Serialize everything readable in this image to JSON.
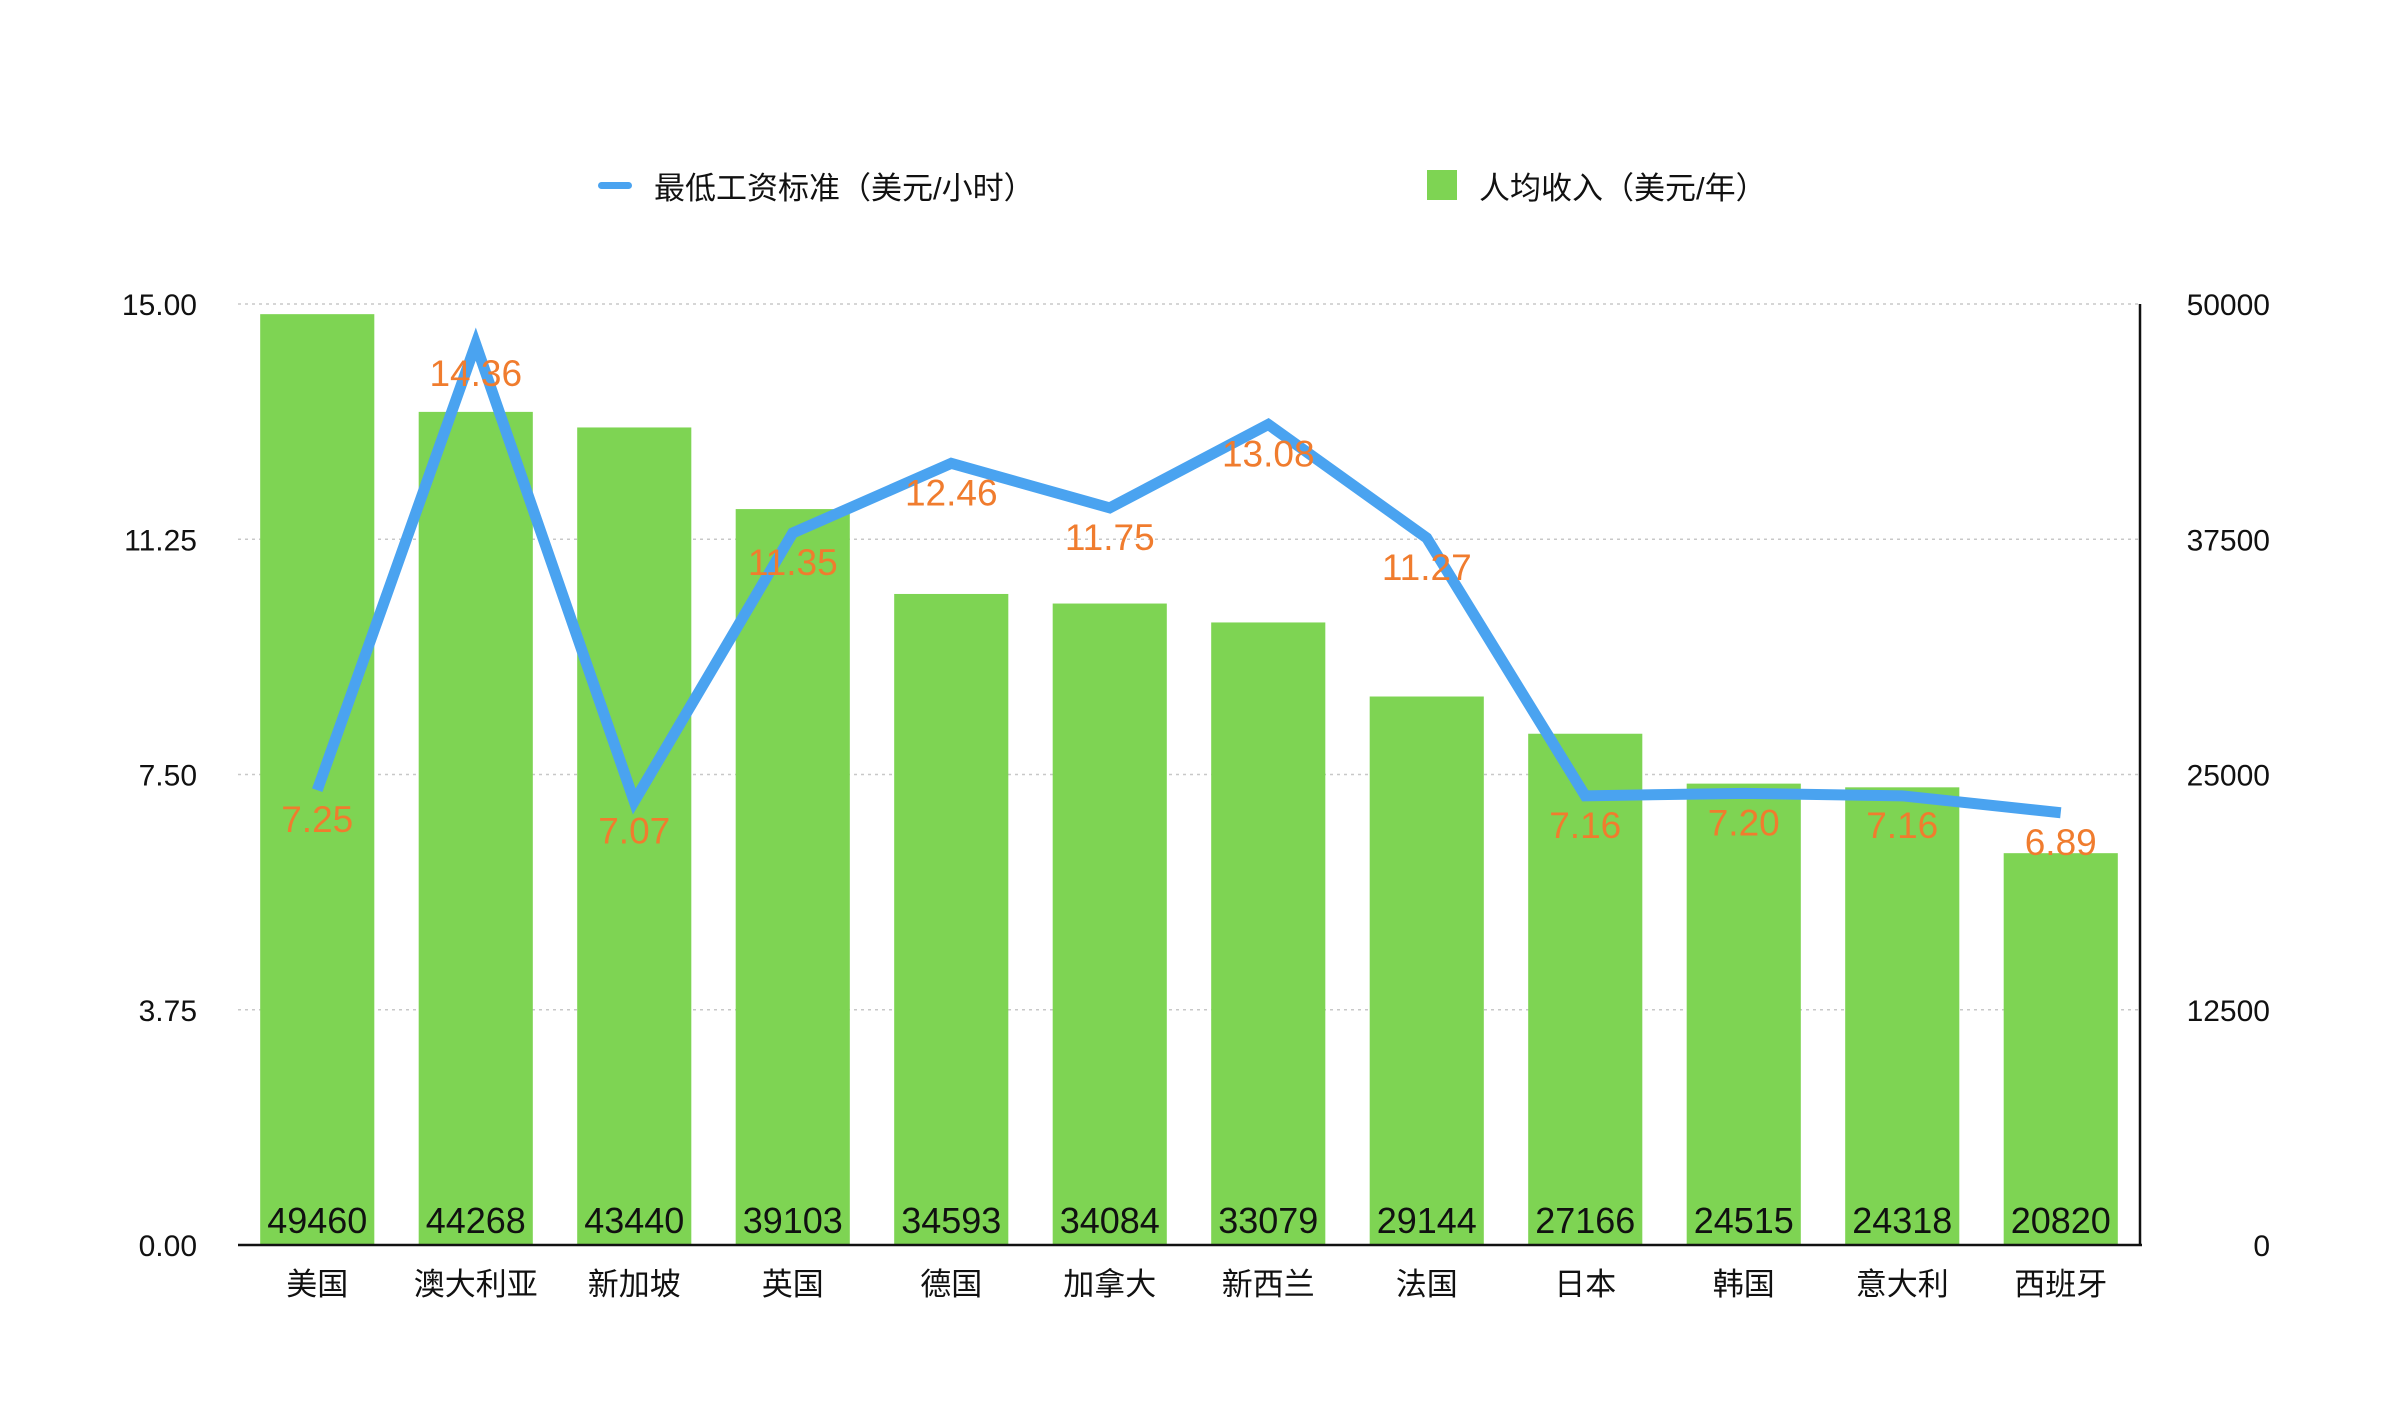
{
  "legend": {
    "line_label": "最低工资标准（美元/小时）",
    "bar_label": "人均收入（美元/年）"
  },
  "colors": {
    "line": "#4aa3f0",
    "bar": "#7ed453",
    "line_label": "#f07c2e",
    "bar_label": "#111111",
    "grid": "#c8c8c8",
    "axis": "#111111"
  },
  "chart_data": {
    "type": "bar",
    "categories": [
      "美国",
      "澳大利亚",
      "新加坡",
      "英国",
      "德国",
      "加拿大",
      "新西兰",
      "法国",
      "日本",
      "韩国",
      "意大利",
      "西班牙"
    ],
    "series": [
      {
        "name": "人均收入（美元/年）",
        "type": "bar",
        "axis": "right",
        "values": [
          49460,
          44268,
          43440,
          39103,
          34593,
          34084,
          33079,
          29144,
          27166,
          24515,
          24318,
          20820
        ]
      },
      {
        "name": "最低工资标准（美元/小时）",
        "type": "line",
        "axis": "left",
        "values": [
          7.25,
          14.36,
          7.07,
          11.35,
          12.46,
          11.75,
          13.08,
          11.27,
          7.16,
          7.2,
          7.16,
          6.89
        ],
        "labels": [
          "7.25",
          "14.36",
          "7.07",
          "11.35",
          "12.46",
          "11.75",
          "13.08",
          "11.27",
          "7.16",
          "7.20",
          "7.16",
          "6.89"
        ]
      }
    ],
    "y_left": {
      "ylim": [
        0,
        15
      ],
      "ticks": [
        "0.00",
        "3.75",
        "7.50",
        "11.25",
        "15.00"
      ]
    },
    "y_right": {
      "ylim": [
        0,
        50000
      ],
      "ticks": [
        "0",
        "12500",
        "25000",
        "37500",
        "50000"
      ]
    },
    "grid": true,
    "legend_position": "top"
  }
}
